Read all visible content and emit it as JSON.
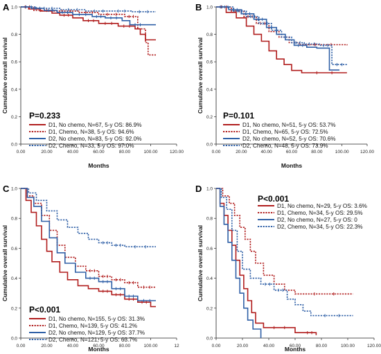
{
  "figure": {
    "background": "#ffffff"
  },
  "colors": {
    "d1": "#b01c1c",
    "d2": "#2e5fa6",
    "axis": "#222222"
  },
  "chart_data": [
    {
      "id": "A",
      "type": "line",
      "panel_label": "A",
      "xlabel": "Months",
      "ylabel": "Cumulative overall survival",
      "xlim": [
        0,
        120
      ],
      "ylim": [
        0,
        1.0
      ],
      "x_ticks": [
        "0.00",
        "20.00",
        "40.00",
        "60.00",
        "80.00",
        "100.00",
        "120.00"
      ],
      "y_ticks": [
        "0.0",
        "0.2",
        "0.4",
        "0.6",
        "0.8",
        "1.0"
      ],
      "grid": false,
      "pvalue": "P=0.233",
      "legend_position": "bottom-left",
      "series": [
        {
          "name": "D1, No chemo, N=67, 5-y OS: 86.9%",
          "group": "D1",
          "style": "solid",
          "points": [
            [
              0,
              1
            ],
            [
              6,
              0.985
            ],
            [
              15,
              0.97
            ],
            [
              24,
              0.955
            ],
            [
              30,
              0.94
            ],
            [
              40,
              0.92
            ],
            [
              48,
              0.9
            ],
            [
              60,
              0.88
            ],
            [
              75,
              0.86
            ],
            [
              88,
              0.84
            ],
            [
              92,
              0.8
            ],
            [
              96,
              0.76
            ],
            [
              104,
              0.76
            ]
          ]
        },
        {
          "name": "D1, Chemo, N=38, 5-y OS: 94.6%",
          "group": "D1",
          "style": "dotted",
          "points": [
            [
              0,
              1
            ],
            [
              10,
              0.975
            ],
            [
              25,
              0.97
            ],
            [
              45,
              0.96
            ],
            [
              60,
              0.946
            ],
            [
              80,
              0.93
            ],
            [
              90,
              0.84
            ],
            [
              96,
              0.74
            ],
            [
              98,
              0.65
            ],
            [
              104,
              0.65
            ]
          ]
        },
        {
          "name": "D2, No chemo, N=83, 5-y OS: 92.0%",
          "group": "D2",
          "style": "solid",
          "points": [
            [
              0,
              1
            ],
            [
              8,
              0.99
            ],
            [
              18,
              0.975
            ],
            [
              28,
              0.96
            ],
            [
              40,
              0.945
            ],
            [
              55,
              0.93
            ],
            [
              65,
              0.92
            ],
            [
              78,
              0.9
            ],
            [
              84,
              0.87
            ],
            [
              96,
              0.87
            ],
            [
              104,
              0.87
            ]
          ]
        },
        {
          "name": "D2, Chemo, N=33, 5-y OS: 97.0%",
          "group": "D2",
          "style": "dotted",
          "points": [
            [
              0,
              1
            ],
            [
              12,
              0.99
            ],
            [
              30,
              0.98
            ],
            [
              50,
              0.97
            ],
            [
              70,
              0.97
            ],
            [
              85,
              0.965
            ],
            [
              104,
              0.965
            ]
          ]
        }
      ]
    },
    {
      "id": "B",
      "type": "line",
      "panel_label": "B",
      "xlabel": "Months",
      "ylabel": "Cumulative overall survival",
      "xlim": [
        0,
        120
      ],
      "ylim": [
        0,
        1.0
      ],
      "x_ticks": [
        "0.00",
        "20.00",
        "40.00",
        "60.00",
        "80.00",
        "100.00",
        "120.00"
      ],
      "y_ticks": [
        "0.0",
        "0.2",
        "0.4",
        "0.6",
        "0.8",
        "1.0"
      ],
      "grid": false,
      "pvalue": "P=0.101",
      "legend_position": "bottom-left",
      "series": [
        {
          "name": "D1, No chemo, N=51, 5-y OS: 53.7%",
          "group": "D1",
          "style": "solid",
          "points": [
            [
              0,
              1
            ],
            [
              8,
              0.96
            ],
            [
              16,
              0.92
            ],
            [
              24,
              0.86
            ],
            [
              30,
              0.8
            ],
            [
              36,
              0.75
            ],
            [
              42,
              0.68
            ],
            [
              48,
              0.62
            ],
            [
              54,
              0.58
            ],
            [
              60,
              0.537
            ],
            [
              68,
              0.52
            ],
            [
              104,
              0.52
            ]
          ]
        },
        {
          "name": "D1, Chemo, N=65, 5-y OS: 72.5%",
          "group": "D1",
          "style": "dotted",
          "points": [
            [
              0,
              1
            ],
            [
              12,
              0.97
            ],
            [
              22,
              0.93
            ],
            [
              32,
              0.88
            ],
            [
              42,
              0.82
            ],
            [
              50,
              0.78
            ],
            [
              58,
              0.74
            ],
            [
              66,
              0.725
            ],
            [
              104,
              0.72
            ]
          ]
        },
        {
          "name": "D2, No chemo, N=52, 5-y OS: 70.6%",
          "group": "D2",
          "style": "solid",
          "points": [
            [
              0,
              1
            ],
            [
              10,
              0.98
            ],
            [
              20,
              0.95
            ],
            [
              30,
              0.91
            ],
            [
              40,
              0.85
            ],
            [
              48,
              0.8
            ],
            [
              55,
              0.76
            ],
            [
              62,
              0.72
            ],
            [
              72,
              0.706
            ],
            [
              80,
              0.7
            ],
            [
              86,
              0.7
            ],
            [
              90,
              0.54
            ],
            [
              98,
              0.54
            ]
          ]
        },
        {
          "name": "D2, Chemo, N=48, 5-y OS: 73.9%",
          "group": "D2",
          "style": "dotted",
          "points": [
            [
              0,
              1
            ],
            [
              14,
              0.97
            ],
            [
              24,
              0.93
            ],
            [
              34,
              0.88
            ],
            [
              44,
              0.83
            ],
            [
              52,
              0.78
            ],
            [
              60,
              0.739
            ],
            [
              70,
              0.73
            ],
            [
              82,
              0.72
            ],
            [
              92,
              0.58
            ],
            [
              104,
              0.58
            ]
          ]
        }
      ]
    },
    {
      "id": "C",
      "type": "line",
      "panel_label": "C",
      "xlabel": "Months",
      "ylabel": "Cumulative overall survival",
      "xlim": [
        0,
        120
      ],
      "ylim": [
        0,
        1.0
      ],
      "x_ticks": [
        "0.00",
        "20.00",
        "40.00",
        "60.00",
        "80.00",
        "100.00",
        "12"
      ],
      "y_ticks": [
        "0.0",
        "0.2",
        "0.4",
        "0.6",
        "0.8",
        "1.0"
      ],
      "grid": false,
      "pvalue": "P<0.001",
      "legend_position": "bottom-left",
      "series": [
        {
          "name": "D1, No chemo, N=155, 5-y OS: 31.3%",
          "group": "D1",
          "style": "solid",
          "points": [
            [
              0,
              1
            ],
            [
              4,
              0.92
            ],
            [
              8,
              0.84
            ],
            [
              12,
              0.75
            ],
            [
              16,
              0.66
            ],
            [
              20,
              0.58
            ],
            [
              24,
              0.51
            ],
            [
              30,
              0.44
            ],
            [
              36,
              0.39
            ],
            [
              44,
              0.35
            ],
            [
              52,
              0.33
            ],
            [
              60,
              0.313
            ],
            [
              70,
              0.29
            ],
            [
              80,
              0.26
            ],
            [
              90,
              0.24
            ],
            [
              100,
              0.21
            ],
            [
              104,
              0.21
            ]
          ]
        },
        {
          "name": "D1, Chemo, N=139, 5-y OS: 41.2%",
          "group": "D1",
          "style": "dotted",
          "points": [
            [
              0,
              1
            ],
            [
              5,
              0.95
            ],
            [
              10,
              0.9
            ],
            [
              16,
              0.82
            ],
            [
              22,
              0.72
            ],
            [
              28,
              0.62
            ],
            [
              34,
              0.54
            ],
            [
              42,
              0.48
            ],
            [
              50,
              0.45
            ],
            [
              60,
              0.412
            ],
            [
              70,
              0.39
            ],
            [
              80,
              0.37
            ],
            [
              90,
              0.34
            ],
            [
              104,
              0.34
            ]
          ]
        },
        {
          "name": "D2, No chemo, N=129, 5-y OS: 37.7%",
          "group": "D2",
          "style": "solid",
          "points": [
            [
              0,
              1
            ],
            [
              5,
              0.94
            ],
            [
              10,
              0.88
            ],
            [
              16,
              0.78
            ],
            [
              22,
              0.67
            ],
            [
              28,
              0.57
            ],
            [
              34,
              0.5
            ],
            [
              42,
              0.44
            ],
            [
              50,
              0.4
            ],
            [
              60,
              0.377
            ],
            [
              70,
              0.33
            ],
            [
              80,
              0.28
            ],
            [
              90,
              0.25
            ],
            [
              104,
              0.25
            ]
          ]
        },
        {
          "name": "D2, Chemo, N=121, 5-y OS: 63.7%",
          "group": "D2",
          "style": "dotted",
          "points": [
            [
              0,
              1
            ],
            [
              6,
              0.97
            ],
            [
              12,
              0.92
            ],
            [
              20,
              0.85
            ],
            [
              28,
              0.79
            ],
            [
              36,
              0.74
            ],
            [
              44,
              0.7
            ],
            [
              52,
              0.66
            ],
            [
              60,
              0.637
            ],
            [
              70,
              0.62
            ],
            [
              80,
              0.61
            ],
            [
              104,
              0.61
            ]
          ]
        }
      ]
    },
    {
      "id": "D",
      "type": "line",
      "panel_label": "D",
      "xlabel": "Months",
      "ylabel": "Cumulative overall survival",
      "xlim": [
        0,
        120
      ],
      "ylim": [
        0,
        1.0
      ],
      "x_ticks": [
        "0.00",
        "20.00",
        "40.00",
        "60.00",
        "80.00",
        "100.00",
        "120.00"
      ],
      "y_ticks": [
        "0.0",
        "0.2",
        "0.4",
        "0.6",
        "0.8",
        "1.0"
      ],
      "grid": false,
      "pvalue": "P<0.001",
      "legend_position": "top-right",
      "series": [
        {
          "name": "D1, No chemo, N=29, 5-y OS: 3.6%",
          "group": "D1",
          "style": "solid",
          "points": [
            [
              0,
              1
            ],
            [
              3,
              0.9
            ],
            [
              6,
              0.82
            ],
            [
              9,
              0.72
            ],
            [
              12,
              0.62
            ],
            [
              15,
              0.52
            ],
            [
              18,
              0.42
            ],
            [
              21,
              0.33
            ],
            [
              24,
              0.25
            ],
            [
              27,
              0.17
            ],
            [
              30,
              0.1
            ],
            [
              36,
              0.07
            ],
            [
              60,
              0.036
            ],
            [
              66,
              0.036
            ],
            [
              76,
              0.02
            ]
          ]
        },
        {
          "name": "D1, Chemo, N=34, 5-y OS: 29.5%",
          "group": "D1",
          "style": "dotted",
          "points": [
            [
              0,
              1
            ],
            [
              5,
              0.95
            ],
            [
              10,
              0.9
            ],
            [
              14,
              0.82
            ],
            [
              18,
              0.74
            ],
            [
              22,
              0.66
            ],
            [
              26,
              0.58
            ],
            [
              30,
              0.5
            ],
            [
              36,
              0.42
            ],
            [
              44,
              0.36
            ],
            [
              52,
              0.32
            ],
            [
              60,
              0.295
            ],
            [
              104,
              0.295
            ]
          ]
        },
        {
          "name": "D2, No chemo, N=27, 5-y OS: 0",
          "group": "D2",
          "style": "solid",
          "points": [
            [
              0,
              1
            ],
            [
              3,
              0.88
            ],
            [
              6,
              0.76
            ],
            [
              9,
              0.64
            ],
            [
              12,
              0.52
            ],
            [
              15,
              0.4
            ],
            [
              18,
              0.3
            ],
            [
              21,
              0.2
            ],
            [
              24,
              0.12
            ],
            [
              28,
              0.06
            ],
            [
              34,
              0
            ]
          ]
        },
        {
          "name": "D2, Chemo, N=34, 5-y OS: 22.3%",
          "group": "D2",
          "style": "dotted",
          "points": [
            [
              0,
              1
            ],
            [
              4,
              0.94
            ],
            [
              8,
              0.86
            ],
            [
              12,
              0.72
            ],
            [
              16,
              0.58
            ],
            [
              20,
              0.46
            ],
            [
              26,
              0.4
            ],
            [
              34,
              0.36
            ],
            [
              44,
              0.32
            ],
            [
              54,
              0.26
            ],
            [
              60,
              0.223
            ],
            [
              66,
              0.18
            ],
            [
              72,
              0.15
            ],
            [
              104,
              0.15
            ]
          ]
        }
      ]
    }
  ]
}
